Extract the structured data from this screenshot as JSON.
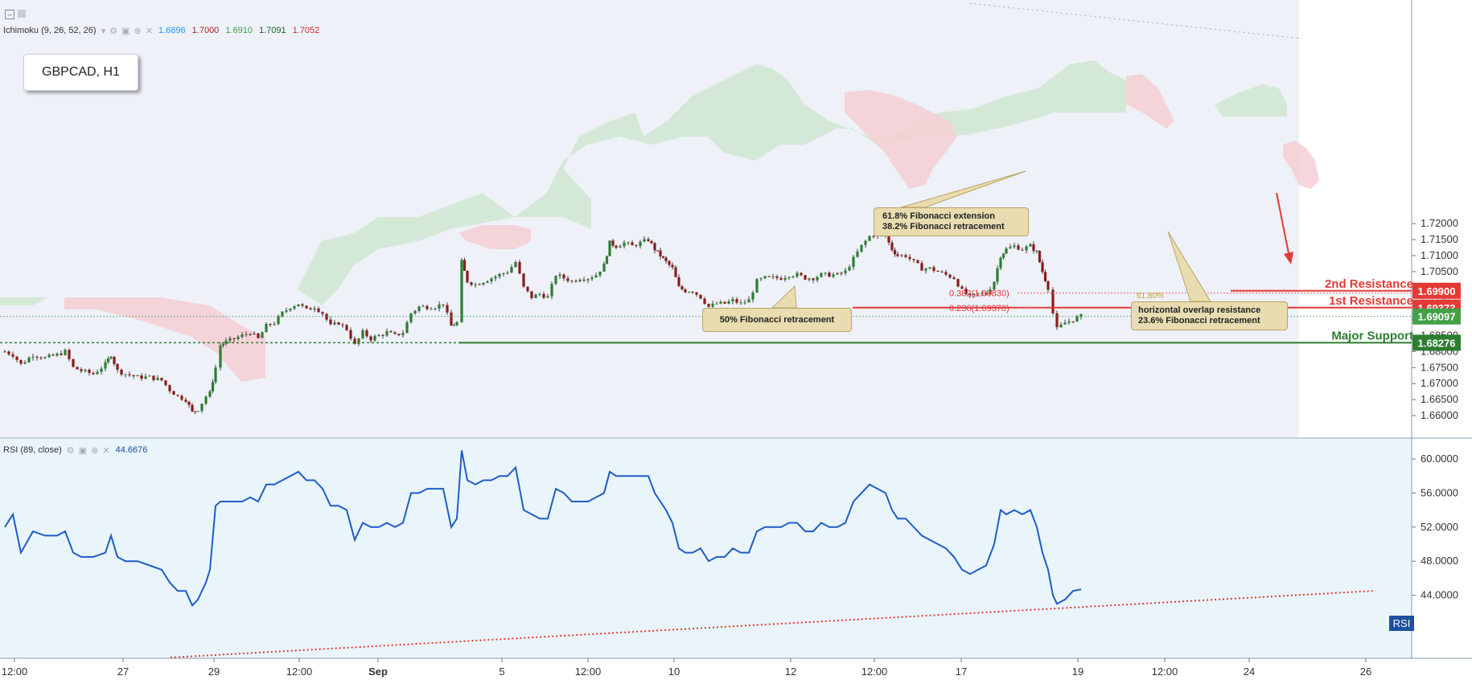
{
  "symbol_box": {
    "label": "GBPCAD, H1"
  },
  "indicators": {
    "ichimoku": {
      "label": "Ichimoku (9, 26, 52, 26)",
      "values": [
        {
          "v": "1.6896",
          "color": "#2196f3"
        },
        {
          "v": "1.7000",
          "color": "#b71c1c"
        },
        {
          "v": "1.6910",
          "color": "#43a047"
        },
        {
          "v": "1.7091",
          "color": "#1b5e20"
        },
        {
          "v": "1.7052",
          "color": "#c62828"
        }
      ]
    },
    "rsi": {
      "label": "RSI (89, close)",
      "value": "44.6676",
      "value_color": "#1e4fa0",
      "tag": "RSI"
    }
  },
  "price_axis": {
    "ticks": [
      "1.72000",
      "1.71500",
      "1.71000",
      "1.70500",
      "1.70000",
      "1.69500",
      "1.69000",
      "1.68500",
      "1.68000",
      "1.67500",
      "1.67000",
      "1.66500",
      "1.66000"
    ],
    "badges": [
      {
        "label": "1.69900",
        "color": "#e53935"
      },
      {
        "label": "1.69373",
        "color": "#e53935"
      },
      {
        "label": "1.69097",
        "color": "#43a047"
      },
      {
        "label": "1.68276",
        "color": "#2e7d32"
      }
    ]
  },
  "rsi_axis": {
    "ticks": [
      "60.0000",
      "56.0000",
      "52.0000",
      "48.0000",
      "44.0000"
    ]
  },
  "time_axis": {
    "labels": [
      "12:00",
      "27",
      "29",
      "12:00",
      "Sep",
      "5",
      "12:00",
      "10",
      "12",
      "12:00",
      "17",
      "19",
      "12:00",
      "24",
      "26"
    ]
  },
  "levels": [
    {
      "name": "2nd Resistance",
      "price": 1.699,
      "color": "#e53935"
    },
    {
      "name": "1st Resistance",
      "price": 1.69373,
      "color": "#e53935"
    },
    {
      "name": "Major Support",
      "price": 1.68276,
      "color": "#2e7d32"
    }
  ],
  "fib_labels": [
    "0.382(1.69830)",
    "0.236(1.69370)",
    "61.80%"
  ],
  "annotations": [
    {
      "lines": [
        "61.8% Fibonacci extension",
        "38.2% Fibonacci retracement"
      ]
    },
    {
      "lines": [
        "50% Fibonacci retracement"
      ]
    },
    {
      "lines": [
        "horizontal overlap resistance",
        "23.6% Fibonacci retracement"
      ]
    }
  ],
  "chart_data": [
    {
      "type": "candlestick",
      "title": "GBPCAD, H1",
      "ylim": [
        1.6555,
        1.7215
      ],
      "x_range_days": [
        "Aug 26",
        "Sep 26"
      ],
      "series_price_points": [
        [
          0,
          1.68
        ],
        [
          10,
          1.679
        ],
        [
          20,
          1.676
        ],
        [
          35,
          1.679
        ],
        [
          50,
          1.678
        ],
        [
          65,
          1.679
        ],
        [
          75,
          1.68
        ],
        [
          85,
          1.675
        ],
        [
          95,
          1.674
        ],
        [
          110,
          1.673
        ],
        [
          125,
          1.676
        ],
        [
          132,
          1.679
        ],
        [
          140,
          1.674
        ],
        [
          150,
          1.673
        ],
        [
          165,
          1.672
        ],
        [
          180,
          1.672
        ],
        [
          195,
          1.671
        ],
        [
          205,
          1.668
        ],
        [
          215,
          1.666
        ],
        [
          225,
          1.665
        ],
        [
          233,
          1.661
        ],
        [
          240,
          1.662
        ],
        [
          250,
          1.666
        ],
        [
          255,
          1.667
        ],
        [
          262,
          1.675
        ],
        [
          268,
          1.682
        ],
        [
          275,
          1.683
        ],
        [
          285,
          1.684
        ],
        [
          295,
          1.685
        ],
        [
          305,
          1.686
        ],
        [
          315,
          1.684
        ],
        [
          325,
          1.688
        ],
        [
          335,
          1.689
        ],
        [
          345,
          1.692
        ],
        [
          355,
          1.694
        ],
        [
          365,
          1.695
        ],
        [
          375,
          1.693
        ],
        [
          385,
          1.694
        ],
        [
          395,
          1.692
        ],
        [
          405,
          1.688
        ],
        [
          415,
          1.689
        ],
        [
          425,
          1.687
        ],
        [
          435,
          1.682
        ],
        [
          445,
          1.686
        ],
        [
          455,
          1.684
        ],
        [
          465,
          1.685
        ],
        [
          475,
          1.686
        ],
        [
          485,
          1.685
        ],
        [
          495,
          1.686
        ],
        [
          505,
          1.692
        ],
        [
          515,
          1.694
        ],
        [
          525,
          1.694
        ],
        [
          535,
          1.694
        ],
        [
          545,
          1.695
        ],
        [
          555,
          1.688
        ],
        [
          562,
          1.689
        ],
        [
          568,
          1.708
        ],
        [
          575,
          1.702
        ],
        [
          585,
          1.701
        ],
        [
          595,
          1.702
        ],
        [
          605,
          1.703
        ],
        [
          615,
          1.704
        ],
        [
          625,
          1.705
        ],
        [
          635,
          1.708
        ],
        [
          645,
          1.7
        ],
        [
          655,
          1.697
        ],
        [
          665,
          1.698
        ],
        [
          675,
          1.697
        ],
        [
          685,
          1.704
        ],
        [
          695,
          1.703
        ],
        [
          705,
          1.702
        ],
        [
          715,
          1.703
        ],
        [
          725,
          1.703
        ],
        [
          735,
          1.704
        ],
        [
          745,
          1.707
        ],
        [
          752,
          1.714
        ],
        [
          760,
          1.713
        ],
        [
          770,
          1.714
        ],
        [
          780,
          1.713
        ],
        [
          790,
          1.714
        ],
        [
          800,
          1.715
        ],
        [
          808,
          1.712
        ],
        [
          815,
          1.71
        ],
        [
          822,
          1.708
        ],
        [
          830,
          1.706
        ],
        [
          838,
          1.7
        ],
        [
          846,
          1.699
        ],
        [
          855,
          1.699
        ],
        [
          865,
          1.697
        ],
        [
          875,
          1.694
        ],
        [
          885,
          1.695
        ],
        [
          895,
          1.695
        ],
        [
          905,
          1.696
        ],
        [
          915,
          1.695
        ],
        [
          925,
          1.696
        ],
        [
          935,
          1.702
        ],
        [
          945,
          1.703
        ],
        [
          955,
          1.703
        ],
        [
          965,
          1.703
        ],
        [
          975,
          1.704
        ],
        [
          985,
          1.704
        ],
        [
          995,
          1.703
        ],
        [
          1005,
          1.703
        ],
        [
          1015,
          1.704
        ],
        [
          1025,
          1.704
        ],
        [
          1035,
          1.704
        ],
        [
          1045,
          1.705
        ],
        [
          1055,
          1.709
        ],
        [
          1065,
          1.713
        ],
        [
          1075,
          1.716
        ],
        [
          1085,
          1.717
        ],
        [
          1095,
          1.716
        ],
        [
          1103,
          1.712
        ],
        [
          1110,
          1.71
        ],
        [
          1120,
          1.71
        ],
        [
          1130,
          1.708
        ],
        [
          1140,
          1.706
        ],
        [
          1150,
          1.706
        ],
        [
          1160,
          1.705
        ],
        [
          1170,
          1.704
        ],
        [
          1180,
          1.703
        ],
        [
          1190,
          1.699
        ],
        [
          1200,
          1.697
        ],
        [
          1210,
          1.698
        ],
        [
          1220,
          1.698
        ],
        [
          1230,
          1.702
        ],
        [
          1238,
          1.71
        ],
        [
          1245,
          1.712
        ],
        [
          1255,
          1.713
        ],
        [
          1265,
          1.712
        ],
        [
          1275,
          1.713
        ],
        [
          1283,
          1.711
        ],
        [
          1290,
          1.705
        ],
        [
          1297,
          1.7
        ],
        [
          1303,
          1.692
        ],
        [
          1308,
          1.687
        ],
        [
          1318,
          1.689
        ],
        [
          1328,
          1.69
        ],
        [
          1338,
          1.691
        ]
      ]
    },
    {
      "type": "line",
      "title": "RSI (89, close)",
      "ylim": [
        41.5,
        62.0
      ],
      "series": [
        {
          "name": "RSI",
          "points": [
            [
              0,
              52.0
            ],
            [
              10,
              53.5
            ],
            [
              20,
              49.0
            ],
            [
              35,
              51.5
            ],
            [
              50,
              51.0
            ],
            [
              65,
              51.0
            ],
            [
              75,
              51.5
            ],
            [
              85,
              49.0
            ],
            [
              95,
              48.5
            ],
            [
              110,
              48.5
            ],
            [
              125,
              49.0
            ],
            [
              132,
              51.0
            ],
            [
              140,
              48.5
            ],
            [
              150,
              48.0
            ],
            [
              165,
              48.0
            ],
            [
              180,
              47.5
            ],
            [
              195,
              47.0
            ],
            [
              205,
              45.5
            ],
            [
              215,
              44.5
            ],
            [
              225,
              44.5
            ],
            [
              233,
              42.8
            ],
            [
              240,
              43.5
            ],
            [
              250,
              45.5
            ],
            [
              255,
              47.0
            ],
            [
              262,
              54.5
            ],
            [
              268,
              55.0
            ],
            [
              275,
              55.0
            ],
            [
              285,
              55.0
            ],
            [
              295,
              55.0
            ],
            [
              305,
              55.5
            ],
            [
              315,
              55.0
            ],
            [
              325,
              57.0
            ],
            [
              335,
              57.0
            ],
            [
              345,
              57.5
            ],
            [
              355,
              58.0
            ],
            [
              365,
              58.5
            ],
            [
              375,
              57.5
            ],
            [
              385,
              57.5
            ],
            [
              395,
              56.5
            ],
            [
              405,
              54.5
            ],
            [
              415,
              54.5
            ],
            [
              425,
              54.0
            ],
            [
              435,
              50.5
            ],
            [
              445,
              52.5
            ],
            [
              455,
              52.0
            ],
            [
              465,
              52.0
            ],
            [
              475,
              52.5
            ],
            [
              485,
              52.0
            ],
            [
              495,
              52.5
            ],
            [
              505,
              56.0
            ],
            [
              515,
              56.0
            ],
            [
              525,
              56.5
            ],
            [
              535,
              56.5
            ],
            [
              545,
              56.5
            ],
            [
              555,
              52.0
            ],
            [
              562,
              53.0
            ],
            [
              568,
              61.0
            ],
            [
              575,
              57.5
            ],
            [
              585,
              57.0
            ],
            [
              595,
              57.5
            ],
            [
              605,
              57.5
            ],
            [
              615,
              58.0
            ],
            [
              625,
              58.0
            ],
            [
              635,
              59.0
            ],
            [
              645,
              54.0
            ],
            [
              655,
              53.5
            ],
            [
              665,
              53.0
            ],
            [
              675,
              53.0
            ],
            [
              685,
              56.5
            ],
            [
              695,
              56.0
            ],
            [
              705,
              55.0
            ],
            [
              715,
              55.0
            ],
            [
              725,
              55.0
            ],
            [
              735,
              55.5
            ],
            [
              745,
              56.0
            ],
            [
              752,
              58.5
            ],
            [
              760,
              58.0
            ],
            [
              770,
              58.0
            ],
            [
              780,
              58.0
            ],
            [
              790,
              58.0
            ],
            [
              800,
              58.0
            ],
            [
              808,
              56.0
            ],
            [
              815,
              55.0
            ],
            [
              822,
              54.0
            ],
            [
              830,
              52.5
            ],
            [
              838,
              49.5
            ],
            [
              846,
              49.0
            ],
            [
              855,
              49.0
            ],
            [
              865,
              49.5
            ],
            [
              875,
              48.0
            ],
            [
              885,
              48.5
            ],
            [
              895,
              48.5
            ],
            [
              905,
              49.5
            ],
            [
              915,
              49.0
            ],
            [
              925,
              49.0
            ],
            [
              935,
              51.5
            ],
            [
              945,
              52.0
            ],
            [
              955,
              52.0
            ],
            [
              965,
              52.0
            ],
            [
              975,
              52.5
            ],
            [
              985,
              52.5
            ],
            [
              995,
              51.5
            ],
            [
              1005,
              51.5
            ],
            [
              1015,
              52.5
            ],
            [
              1025,
              52.0
            ],
            [
              1035,
              52.0
            ],
            [
              1045,
              52.5
            ],
            [
              1055,
              55.0
            ],
            [
              1065,
              56.0
            ],
            [
              1075,
              57.0
            ],
            [
              1085,
              56.5
            ],
            [
              1095,
              56.0
            ],
            [
              1103,
              54.0
            ],
            [
              1110,
              53.0
            ],
            [
              1120,
              53.0
            ],
            [
              1130,
              52.0
            ],
            [
              1140,
              51.0
            ],
            [
              1150,
              50.5
            ],
            [
              1160,
              50.0
            ],
            [
              1170,
              49.5
            ],
            [
              1180,
              48.5
            ],
            [
              1190,
              47.0
            ],
            [
              1200,
              46.5
            ],
            [
              1210,
              47.0
            ],
            [
              1220,
              47.5
            ],
            [
              1230,
              50.0
            ],
            [
              1238,
              54.0
            ],
            [
              1245,
              53.5
            ],
            [
              1255,
              54.0
            ],
            [
              1265,
              53.5
            ],
            [
              1275,
              54.0
            ],
            [
              1283,
              52.0
            ],
            [
              1290,
              49.0
            ],
            [
              1297,
              47.0
            ],
            [
              1303,
              44.0
            ],
            [
              1308,
              43.0
            ],
            [
              1318,
              43.5
            ],
            [
              1328,
              44.5
            ],
            [
              1338,
              44.7
            ]
          ]
        }
      ]
    }
  ]
}
